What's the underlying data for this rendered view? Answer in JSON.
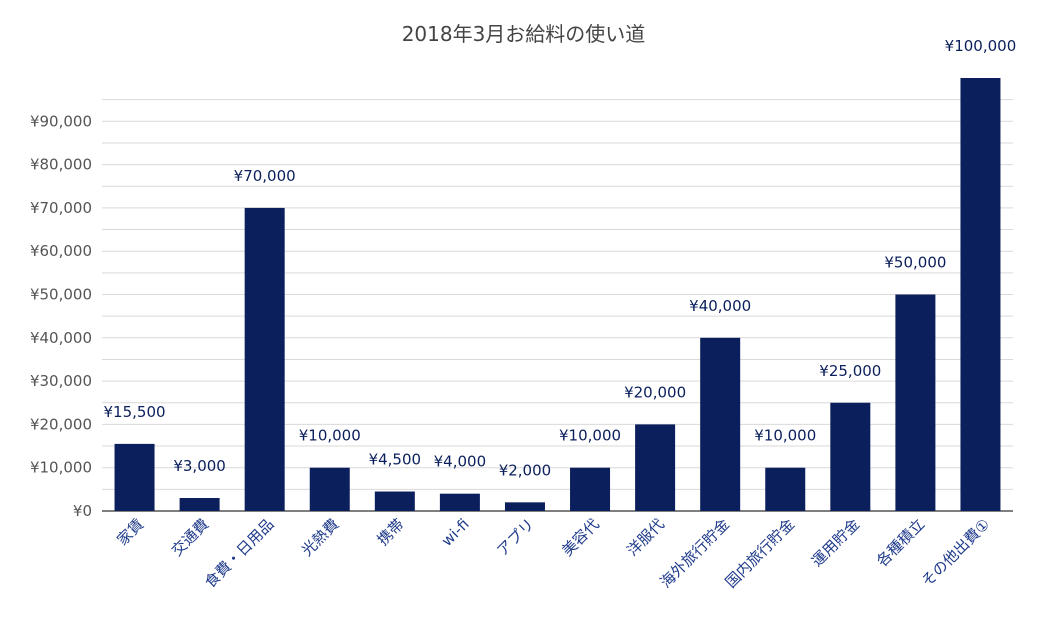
{
  "chart_data": {
    "type": "bar",
    "title": "2018年3月お給料の使い道",
    "xlabel": "",
    "ylabel": "",
    "categories": [
      "家賃",
      "交通費",
      "食費・日用品",
      "光熱費",
      "携帯",
      "wi-fi",
      "アプリ",
      "美容代",
      "洋服代",
      "海外旅行貯金",
      "国内旅行貯金",
      "運用貯金",
      "各種積立",
      "その他出費①"
    ],
    "values": [
      15500,
      3000,
      70000,
      10000,
      4500,
      4000,
      2000,
      10000,
      20000,
      40000,
      10000,
      25000,
      50000,
      100000
    ],
    "data_labels": [
      "¥15,500",
      "¥3,000",
      "¥70,000",
      "¥10,000",
      "¥4,500",
      "¥4,000",
      "¥2,000",
      "¥10,000",
      "¥20,000",
      "¥40,000",
      "¥10,000",
      "¥25,000",
      "¥50,000",
      "¥100,000"
    ],
    "yticks": [
      0,
      10000,
      20000,
      30000,
      40000,
      50000,
      60000,
      70000,
      80000,
      90000
    ],
    "ytick_labels": [
      "¥0",
      "¥10,000",
      "¥20,000",
      "¥30,000",
      "¥40,000",
      "¥50,000",
      "¥60,000",
      "¥70,000",
      "¥80,000",
      "¥90,000"
    ],
    "ylim": [
      0,
      95000
    ],
    "grid": true,
    "legend": "none",
    "colors": {
      "bar": "#0b1f5c",
      "data_label": "#0b1f5c",
      "category_label": "#1e3a8a",
      "grid": "#d9d9d9",
      "axis": "#333333"
    }
  }
}
